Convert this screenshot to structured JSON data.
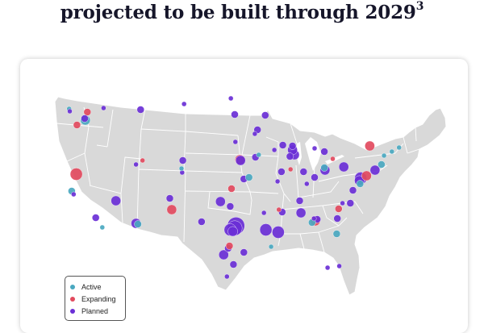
{
  "header": {
    "title": "projected to be built through 2029",
    "footnote": "3"
  },
  "legend": {
    "items": [
      {
        "key": "active",
        "label": "Active",
        "color": "#4aa8c0"
      },
      {
        "key": "expanding",
        "label": "Expanding",
        "color": "#e24a5e"
      },
      {
        "key": "planned",
        "label": "Planned",
        "color": "#6a2fd6"
      }
    ]
  },
  "map": {
    "land_color": "#d9d9d9",
    "border_color": "#ffffff",
    "sites": [
      {
        "lon": -122.3,
        "lat": 47.6,
        "size": 1,
        "status": "active"
      },
      {
        "lon": -122.2,
        "lat": 47.3,
        "size": 1,
        "status": "planned"
      },
      {
        "lon": -119.5,
        "lat": 47.2,
        "size": 2,
        "status": "expanding"
      },
      {
        "lon": -119.8,
        "lat": 46.2,
        "size": 3,
        "status": "active"
      },
      {
        "lon": -121.1,
        "lat": 45.6,
        "size": 2,
        "status": "expanding"
      },
      {
        "lon": -119.9,
        "lat": 46.4,
        "size": 2,
        "status": "planned"
      },
      {
        "lon": -117.0,
        "lat": 47.7,
        "size": 1,
        "status": "planned"
      },
      {
        "lon": -121.2,
        "lat": 39.5,
        "size": 4,
        "status": "expanding"
      },
      {
        "lon": -121.9,
        "lat": 37.4,
        "size": 2,
        "status": "active"
      },
      {
        "lon": -121.6,
        "lat": 37.0,
        "size": 1,
        "status": "planned"
      },
      {
        "lon": -118.2,
        "lat": 34.1,
        "size": 2,
        "status": "planned"
      },
      {
        "lon": -117.2,
        "lat": 32.9,
        "size": 1,
        "status": "active"
      },
      {
        "lon": -115.1,
        "lat": 36.2,
        "size": 3,
        "status": "planned"
      },
      {
        "lon": -112.0,
        "lat": 33.4,
        "size": 3,
        "status": "planned"
      },
      {
        "lon": -111.7,
        "lat": 33.3,
        "size": 2,
        "status": "active"
      },
      {
        "lon": -112.0,
        "lat": 40.7,
        "size": 1,
        "status": "planned"
      },
      {
        "lon": -111.0,
        "lat": 41.2,
        "size": 1,
        "status": "expanding"
      },
      {
        "lon": -104.9,
        "lat": 39.7,
        "size": 1,
        "status": "planned"
      },
      {
        "lon": -104.8,
        "lat": 41.2,
        "size": 2,
        "status": "planned"
      },
      {
        "lon": -105.0,
        "lat": 40.2,
        "size": 1,
        "status": "active"
      },
      {
        "lon": -106.5,
        "lat": 35.1,
        "size": 3,
        "status": "expanding"
      },
      {
        "lon": -106.8,
        "lat": 36.5,
        "size": 2,
        "status": "planned"
      },
      {
        "lon": -111.3,
        "lat": 47.5,
        "size": 2,
        "status": "planned"
      },
      {
        "lon": -104.6,
        "lat": 48.2,
        "size": 1,
        "status": "planned"
      },
      {
        "lon": -97.4,
        "lat": 48.9,
        "size": 1,
        "status": "planned"
      },
      {
        "lon": -96.8,
        "lat": 46.9,
        "size": 2,
        "status": "planned"
      },
      {
        "lon": -93.3,
        "lat": 45.0,
        "size": 2,
        "status": "planned"
      },
      {
        "lon": -93.7,
        "lat": 44.5,
        "size": 1,
        "status": "planned"
      },
      {
        "lon": -96.0,
        "lat": 41.3,
        "size": 3,
        "status": "expanding"
      },
      {
        "lon": -95.9,
        "lat": 41.2,
        "size": 3,
        "status": "planned"
      },
      {
        "lon": -93.6,
        "lat": 41.6,
        "size": 2,
        "status": "planned"
      },
      {
        "lon": -93.1,
        "lat": 41.9,
        "size": 1,
        "status": "active"
      },
      {
        "lon": -95.4,
        "lat": 38.9,
        "size": 2,
        "status": "planned"
      },
      {
        "lon": -94.6,
        "lat": 39.1,
        "size": 2,
        "status": "active"
      },
      {
        "lon": -97.3,
        "lat": 37.7,
        "size": 2,
        "status": "expanding"
      },
      {
        "lon": -97.5,
        "lat": 35.5,
        "size": 2,
        "status": "planned"
      },
      {
        "lon": -99.0,
        "lat": 36.1,
        "size": 3,
        "status": "planned"
      },
      {
        "lon": -96.8,
        "lat": 32.8,
        "size": 5,
        "status": "planned"
      },
      {
        "lon": -97.5,
        "lat": 32.6,
        "size": 4,
        "status": "planned"
      },
      {
        "lon": -96.6,
        "lat": 33.1,
        "size": 6,
        "status": "planned"
      },
      {
        "lon": -97.1,
        "lat": 32.4,
        "size": 3,
        "status": "planned"
      },
      {
        "lon": -98.5,
        "lat": 29.5,
        "size": 3,
        "status": "planned"
      },
      {
        "lon": -97.8,
        "lat": 30.3,
        "size": 2,
        "status": "planned"
      },
      {
        "lon": -97.6,
        "lat": 30.6,
        "size": 2,
        "status": "expanding"
      },
      {
        "lon": -95.4,
        "lat": 29.8,
        "size": 2,
        "status": "planned"
      },
      {
        "lon": -97.0,
        "lat": 28.3,
        "size": 2,
        "status": "planned"
      },
      {
        "lon": -101.9,
        "lat": 33.6,
        "size": 2,
        "status": "planned"
      },
      {
        "lon": -98.0,
        "lat": 26.8,
        "size": 1,
        "status": "planned"
      },
      {
        "lon": -92.0,
        "lat": 32.6,
        "size": 4,
        "status": "planned"
      },
      {
        "lon": -90.1,
        "lat": 32.3,
        "size": 4,
        "status": "planned"
      },
      {
        "lon": -91.2,
        "lat": 30.5,
        "size": 1,
        "status": "active"
      },
      {
        "lon": -92.3,
        "lat": 34.7,
        "size": 1,
        "status": "planned"
      },
      {
        "lon": -89.5,
        "lat": 34.8,
        "size": 2,
        "status": "planned"
      },
      {
        "lon": -90.0,
        "lat": 35.1,
        "size": 1,
        "status": "expanding"
      },
      {
        "lon": -86.8,
        "lat": 36.2,
        "size": 2,
        "status": "planned"
      },
      {
        "lon": -86.6,
        "lat": 34.7,
        "size": 3,
        "status": "planned"
      },
      {
        "lon": -84.4,
        "lat": 33.7,
        "size": 3,
        "status": "expanding"
      },
      {
        "lon": -84.1,
        "lat": 33.9,
        "size": 2,
        "status": "planned"
      },
      {
        "lon": -84.9,
        "lat": 33.5,
        "size": 2,
        "status": "active"
      },
      {
        "lon": -84.6,
        "lat": 34.0,
        "size": 1,
        "status": "planned"
      },
      {
        "lon": -81.0,
        "lat": 34.0,
        "size": 2,
        "status": "planned"
      },
      {
        "lon": -80.8,
        "lat": 35.2,
        "size": 2,
        "status": "expanding"
      },
      {
        "lon": -80.2,
        "lat": 35.9,
        "size": 1,
        "status": "planned"
      },
      {
        "lon": -79.0,
        "lat": 35.9,
        "size": 2,
        "status": "planned"
      },
      {
        "lon": -81.1,
        "lat": 32.1,
        "size": 2,
        "status": "active"
      },
      {
        "lon": -80.7,
        "lat": 28.1,
        "size": 1,
        "status": "planned"
      },
      {
        "lon": -82.5,
        "lat": 27.9,
        "size": 1,
        "status": "planned"
      },
      {
        "lon": -77.4,
        "lat": 39.0,
        "size": 4,
        "status": "planned"
      },
      {
        "lon": -77.6,
        "lat": 38.7,
        "size": 3,
        "status": "planned"
      },
      {
        "lon": -77.5,
        "lat": 38.3,
        "size": 2,
        "status": "active"
      },
      {
        "lon": -78.6,
        "lat": 37.5,
        "size": 2,
        "status": "planned"
      },
      {
        "lon": -76.5,
        "lat": 39.3,
        "size": 3,
        "status": "expanding"
      },
      {
        "lon": -75.2,
        "lat": 40.0,
        "size": 3,
        "status": "planned"
      },
      {
        "lon": -74.2,
        "lat": 40.7,
        "size": 2,
        "status": "active"
      },
      {
        "lon": -73.8,
        "lat": 41.8,
        "size": 1,
        "status": "active"
      },
      {
        "lon": -72.6,
        "lat": 42.3,
        "size": 1,
        "status": "active"
      },
      {
        "lon": -71.5,
        "lat": 42.8,
        "size": 1,
        "status": "active"
      },
      {
        "lon": -76.0,
        "lat": 43.0,
        "size": 3,
        "status": "expanding"
      },
      {
        "lon": -80.0,
        "lat": 40.4,
        "size": 3,
        "status": "planned"
      },
      {
        "lon": -81.7,
        "lat": 41.4,
        "size": 1,
        "status": "expanding"
      },
      {
        "lon": -82.9,
        "lat": 40.0,
        "size": 3,
        "status": "planned"
      },
      {
        "lon": -83.0,
        "lat": 40.3,
        "size": 2,
        "status": "active"
      },
      {
        "lon": -84.5,
        "lat": 39.1,
        "size": 2,
        "status": "planned"
      },
      {
        "lon": -86.2,
        "lat": 39.8,
        "size": 2,
        "status": "planned"
      },
      {
        "lon": -85.7,
        "lat": 38.3,
        "size": 1,
        "status": "planned"
      },
      {
        "lon": -87.6,
        "lat": 41.9,
        "size": 3,
        "status": "planned"
      },
      {
        "lon": -87.9,
        "lat": 42.5,
        "size": 3,
        "status": "planned"
      },
      {
        "lon": -88.3,
        "lat": 41.7,
        "size": 2,
        "status": "planned"
      },
      {
        "lon": -87.9,
        "lat": 43.0,
        "size": 2,
        "status": "planned"
      },
      {
        "lon": -89.4,
        "lat": 43.1,
        "size": 2,
        "status": "planned"
      },
      {
        "lon": -83.0,
        "lat": 42.3,
        "size": 2,
        "status": "planned"
      },
      {
        "lon": -84.5,
        "lat": 42.7,
        "size": 1,
        "status": "planned"
      },
      {
        "lon": -89.6,
        "lat": 39.8,
        "size": 2,
        "status": "planned"
      },
      {
        "lon": -90.2,
        "lat": 38.6,
        "size": 1,
        "status": "planned"
      },
      {
        "lon": -88.2,
        "lat": 40.1,
        "size": 1,
        "status": "expanding"
      },
      {
        "lon": -92.1,
        "lat": 46.8,
        "size": 2,
        "status": "planned"
      },
      {
        "lon": -96.7,
        "lat": 43.5,
        "size": 1,
        "status": "planned"
      },
      {
        "lon": -90.7,
        "lat": 42.5,
        "size": 1,
        "status": "planned"
      }
    ]
  }
}
